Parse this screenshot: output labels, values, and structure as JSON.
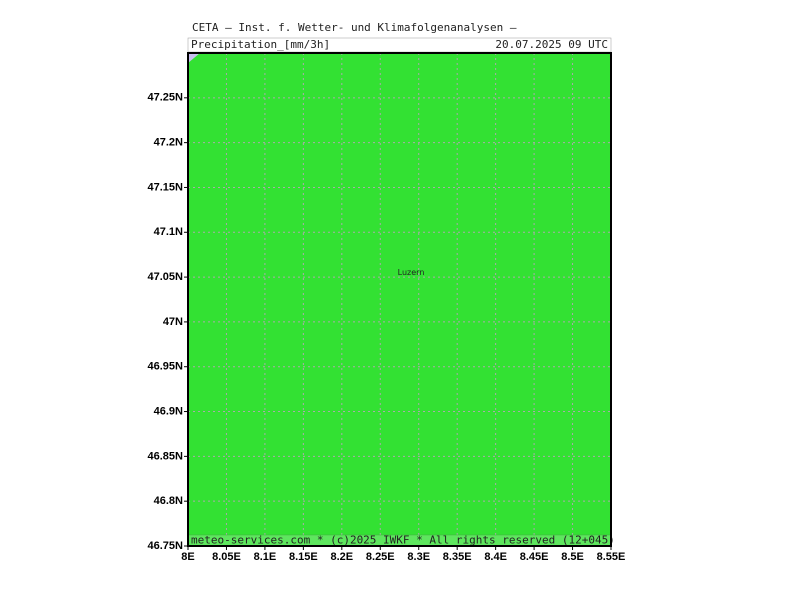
{
  "header": {
    "title": "CETA — Inst. f. Wetter- und Klimafolgenanalysen —",
    "field": "Precipitation_[mm/3h]",
    "valid_time": "20.07.2025 09 UTC"
  },
  "footer": "meteo-services.com * (c)2025 IWKF * All rights reserved (12+045)",
  "map": {
    "fill": "#33e133",
    "lonlim": [
      8,
      8.55
    ],
    "latlim": [
      46.75,
      47.3
    ],
    "lon_ticks": [
      {
        "value": 8,
        "label": "8E"
      },
      {
        "value": 8.05,
        "label": "8.05E"
      },
      {
        "value": 8.1,
        "label": "8.1E"
      },
      {
        "value": 8.15,
        "label": "8.15E"
      },
      {
        "value": 8.2,
        "label": "8.2E"
      },
      {
        "value": 8.25,
        "label": "8.25E"
      },
      {
        "value": 8.3,
        "label": "8.3E"
      },
      {
        "value": 8.35,
        "label": "8.35E"
      },
      {
        "value": 8.4,
        "label": "8.4E"
      },
      {
        "value": 8.45,
        "label": "8.45E"
      },
      {
        "value": 8.5,
        "label": "8.5E"
      },
      {
        "value": 8.55,
        "label": "8.55E"
      }
    ],
    "lat_ticks": [
      {
        "value": 46.75,
        "label": "46.75N"
      },
      {
        "value": 46.8,
        "label": "46.8N"
      },
      {
        "value": 46.85,
        "label": "46.85N"
      },
      {
        "value": 46.9,
        "label": "46.9N"
      },
      {
        "value": 46.95,
        "label": "46.95N"
      },
      {
        "value": 47,
        "label": "47N"
      },
      {
        "value": 47.05,
        "label": "47.05N"
      },
      {
        "value": 47.1,
        "label": "47.1N"
      },
      {
        "value": 47.15,
        "label": "47.15N"
      },
      {
        "value": 47.2,
        "label": "47.2N"
      },
      {
        "value": 47.25,
        "label": "47.25N"
      }
    ],
    "cities": [
      {
        "name": "Luzern",
        "lon": 8.29,
        "lat": 47.055
      }
    ]
  }
}
